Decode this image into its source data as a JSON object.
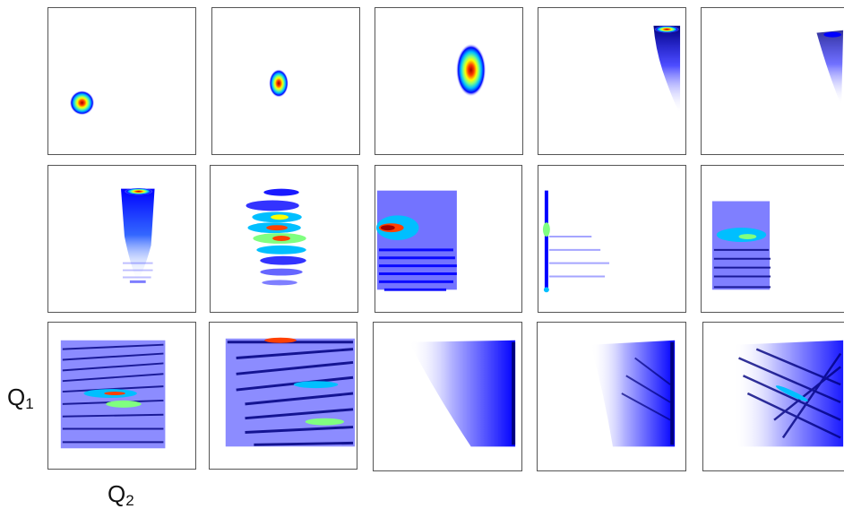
{
  "labels": {
    "q1_main": "Q",
    "q1_sub": "1",
    "q2_main": "Q",
    "q2_sub": "2"
  },
  "colormap": [
    "#00007f",
    "#0000ff",
    "#00bfff",
    "#80ff80",
    "#ffff00",
    "#ff4000",
    "#a00000"
  ],
  "panel_count": 15,
  "grid": {
    "rows": 3,
    "columns": 5
  }
}
